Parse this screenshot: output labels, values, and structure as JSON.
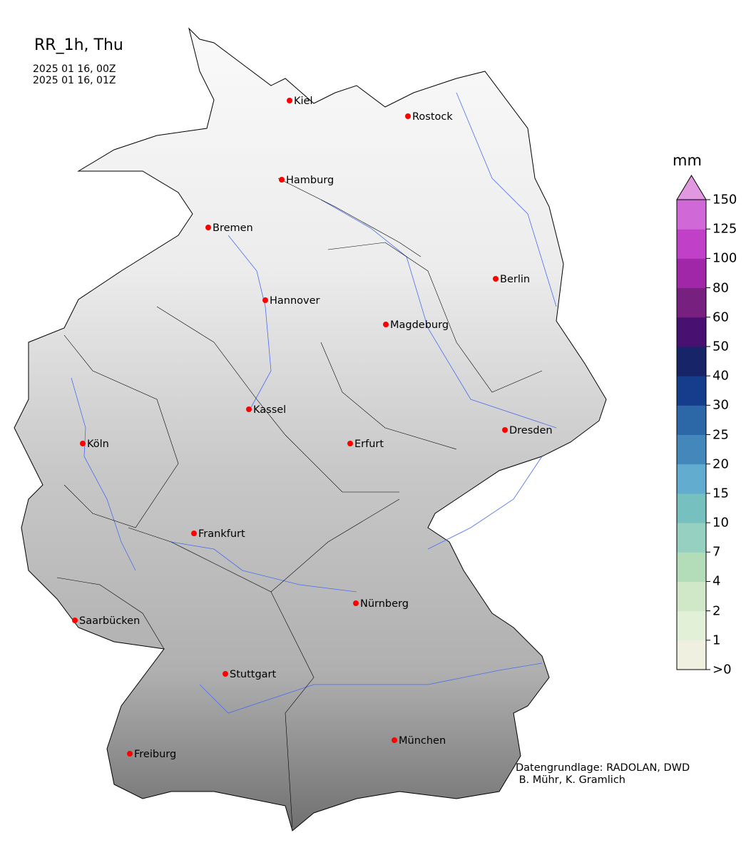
{
  "title": "RR_1h, Thu",
  "time_from": "2025 01 16, 00Z",
  "time_to": "2025 01 16, 01Z",
  "colorbar": {
    "unit": "mm",
    "ticks": [
      ">0",
      "1",
      "2",
      "4",
      "7",
      "10",
      "15",
      "20",
      "25",
      "30",
      "40",
      "50",
      "60",
      "80",
      "100",
      "125",
      "150"
    ],
    "colors": [
      "#f0f0e0",
      "#e3f0d8",
      "#d0e8c8",
      "#b3dcb8",
      "#96d0c0",
      "#76c0c0",
      "#62acd0",
      "#4488bb",
      "#2c68a8",
      "#163c8c",
      "#182468",
      "#481070",
      "#782080",
      "#a028a8",
      "#c040c8",
      "#d068d8"
    ],
    "extend_color": "#e098e0"
  },
  "cities": [
    "Kiel",
    "Rostock",
    "Hamburg",
    "Bremen",
    "Berlin",
    "Hannover",
    "Magdeburg",
    "Kassel",
    "Köln",
    "Erfurt",
    "Dresden",
    "Frankfurt",
    "Nürnberg",
    "Saarbücken",
    "Stuttgart",
    "München",
    "Freiburg"
  ],
  "city_marker_color": "#ff0000",
  "river_color": "#4a6cf0",
  "credit": "Datengrundlage: RADOLAN, DWD\n B. Mühr, K. Gramlich"
}
